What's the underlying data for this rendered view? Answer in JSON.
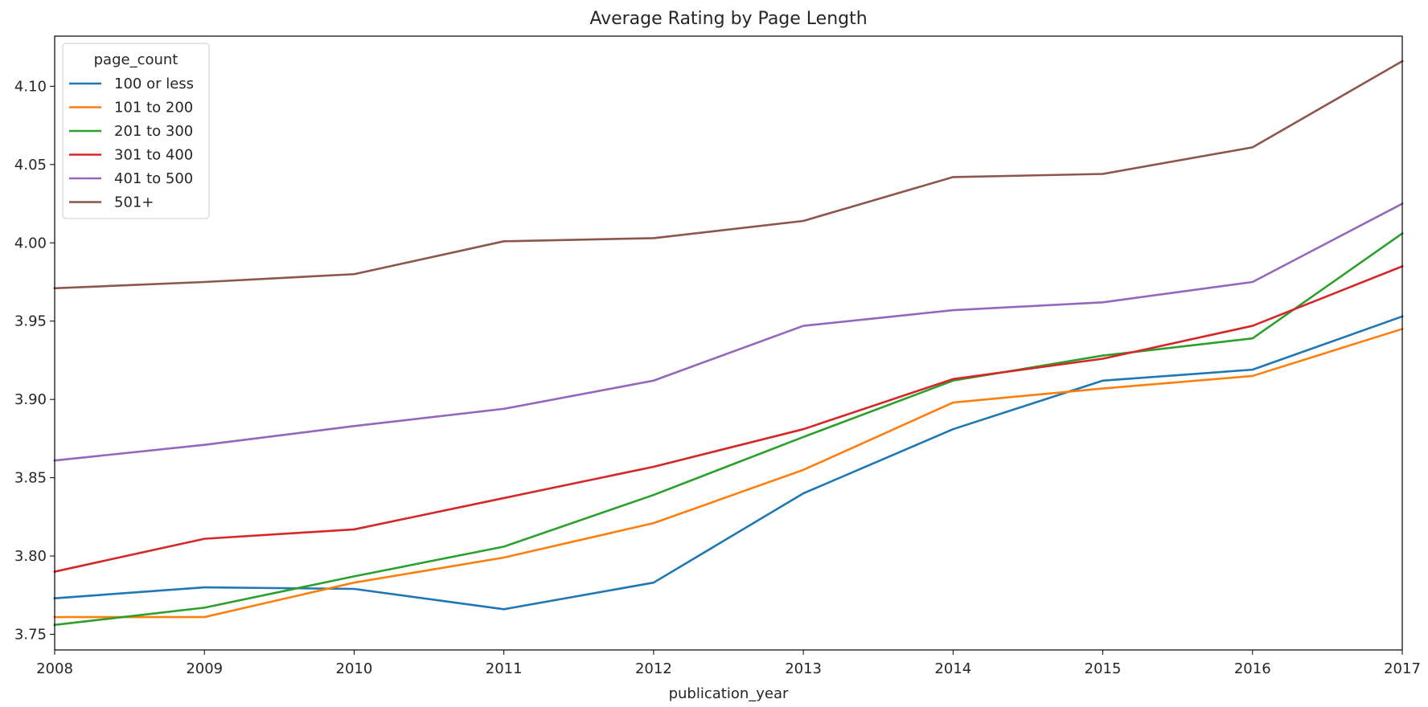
{
  "chart_data": {
    "type": "line",
    "title": "Average Rating by Page Length",
    "xlabel": "publication_year",
    "ylabel": "",
    "x": [
      2008,
      2009,
      2010,
      2011,
      2012,
      2013,
      2014,
      2015,
      2016,
      2017
    ],
    "x_tick_labels": [
      "2008",
      "2009",
      "2010",
      "2011",
      "2012",
      "2013",
      "2014",
      "2015",
      "2016",
      "2017"
    ],
    "xlim": [
      2008,
      2017
    ],
    "ylim": [
      3.74,
      4.132
    ],
    "y_ticks": [
      3.75,
      3.8,
      3.85,
      3.9,
      3.95,
      4.0,
      4.05,
      4.1
    ],
    "y_tick_labels": [
      "3.75",
      "3.80",
      "3.85",
      "3.90",
      "3.95",
      "4.00",
      "4.05",
      "4.10"
    ],
    "grid": false,
    "legend_title": "page_count",
    "legend_position": "top-left",
    "series": [
      {
        "name": "100 or less",
        "color": "#1f77b4",
        "values": [
          3.773,
          3.78,
          3.779,
          3.766,
          3.783,
          3.84,
          3.881,
          3.912,
          3.919,
          3.953
        ]
      },
      {
        "name": "101 to 200",
        "color": "#ff7f0e",
        "values": [
          3.761,
          3.761,
          3.783,
          3.799,
          3.821,
          3.855,
          3.898,
          3.907,
          3.915,
          3.945
        ]
      },
      {
        "name": "201 to 300",
        "color": "#2ca02c",
        "values": [
          3.756,
          3.767,
          3.787,
          3.806,
          3.839,
          3.876,
          3.912,
          3.928,
          3.939,
          4.006
        ]
      },
      {
        "name": "301 to 400",
        "color": "#d62728",
        "values": [
          3.79,
          3.811,
          3.817,
          3.837,
          3.857,
          3.881,
          3.913,
          3.926,
          3.947,
          3.985
        ]
      },
      {
        "name": "401 to 500",
        "color": "#9467bd",
        "values": [
          3.861,
          3.871,
          3.883,
          3.894,
          3.912,
          3.947,
          3.957,
          3.962,
          3.975,
          4.025
        ]
      },
      {
        "name": "501+",
        "color": "#8c564b",
        "values": [
          3.971,
          3.975,
          3.98,
          4.001,
          4.003,
          4.014,
          4.042,
          4.044,
          4.061,
          4.116
        ]
      }
    ]
  }
}
